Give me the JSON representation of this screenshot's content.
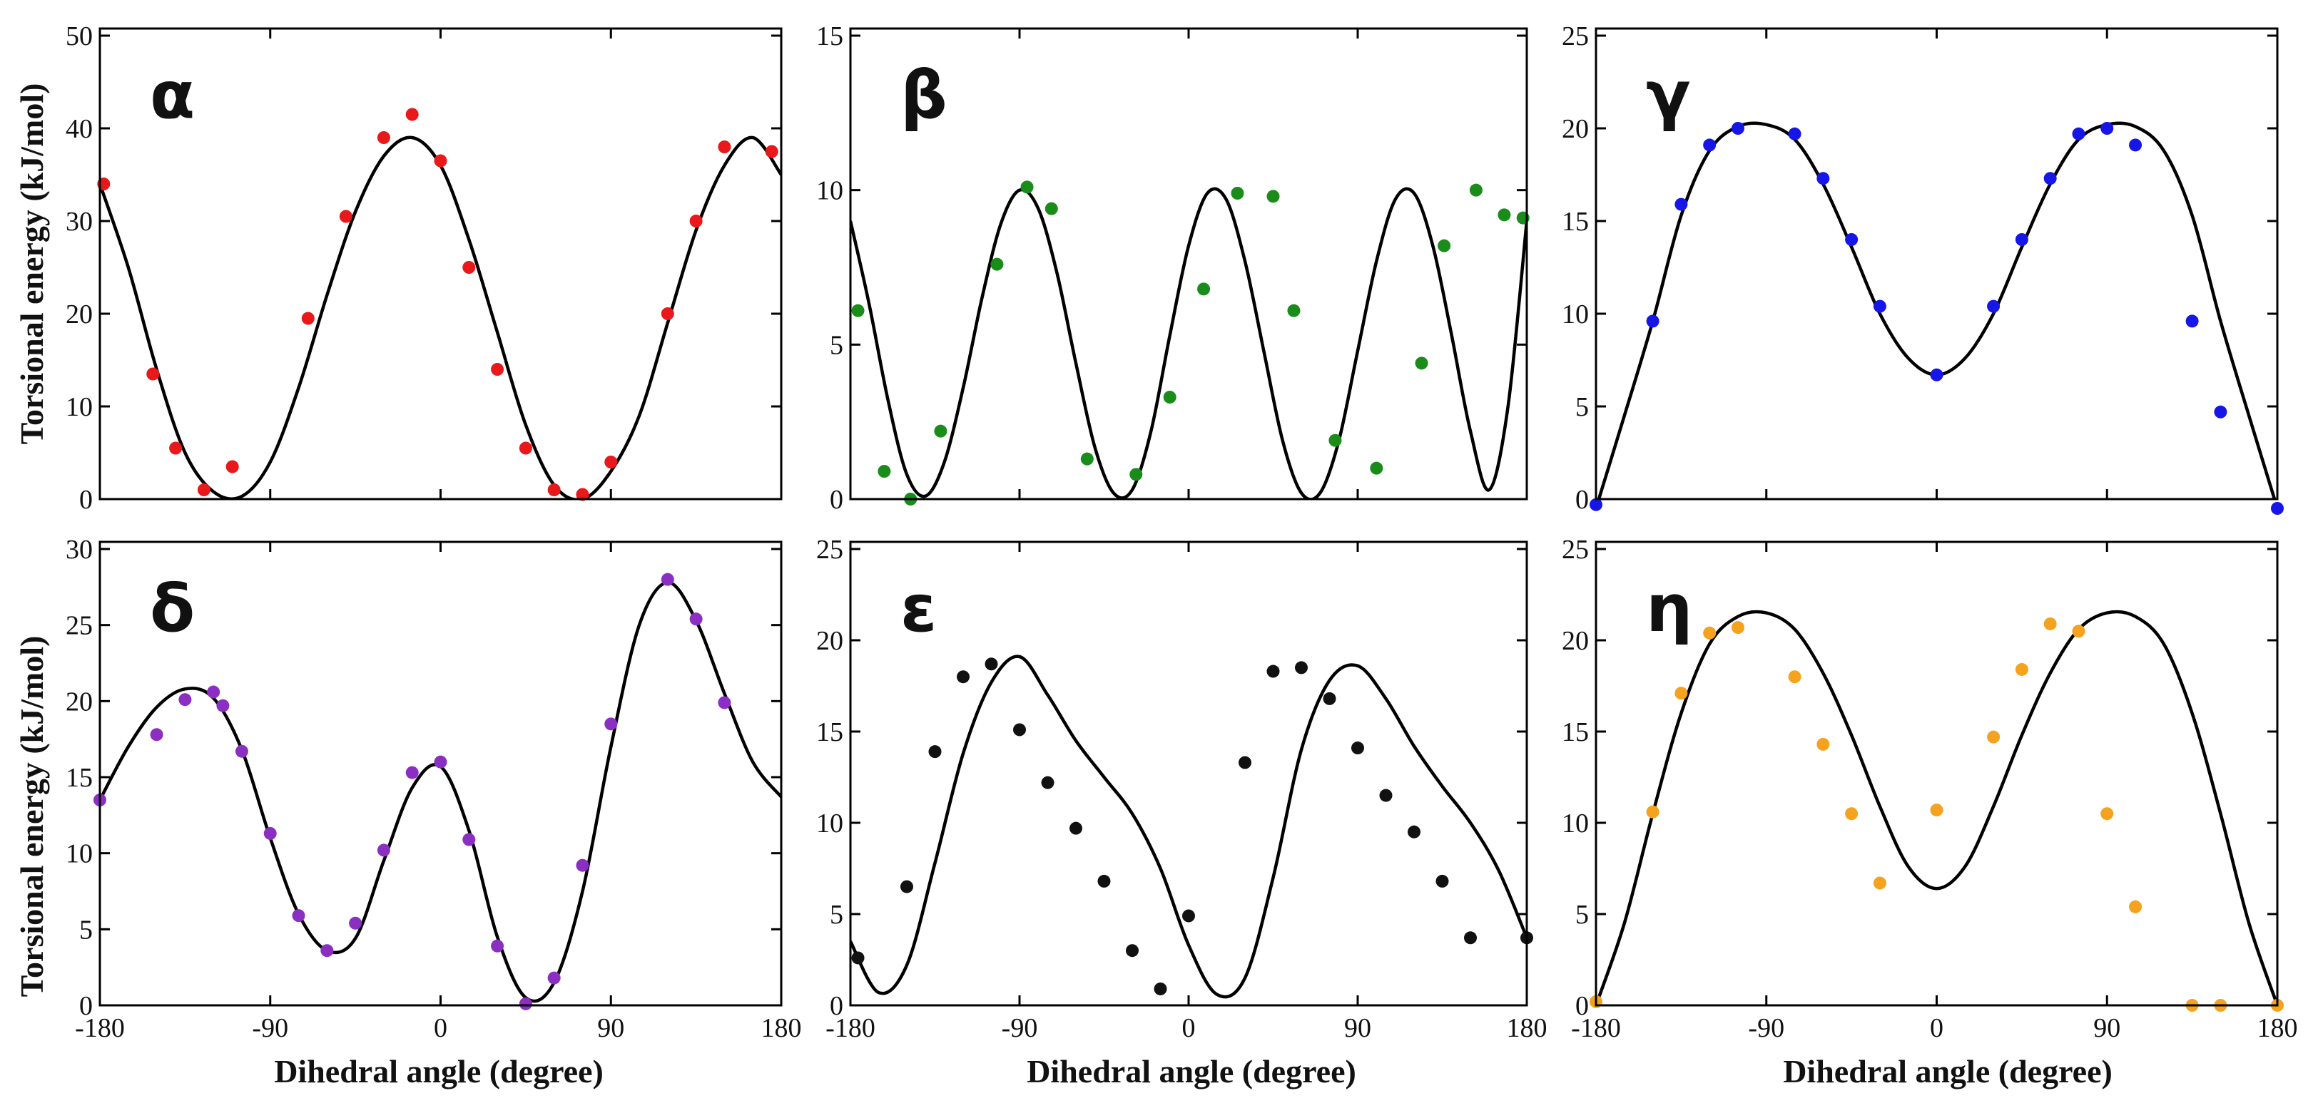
{
  "figure": {
    "ylabel": "Torsional energy (kJ/mol)",
    "xlabel": "Dihedral angle (degree)"
  },
  "chart_data": [
    {
      "type": "scatter",
      "panel_label": "α",
      "point_color": "#e8181b",
      "xlim": [
        -180,
        180
      ],
      "ylim": [
        0,
        50
      ],
      "yticks": [
        0,
        10,
        20,
        30,
        40,
        50
      ],
      "xticks": [],
      "curve": {
        "x": [
          -180,
          -165,
          -150,
          -135,
          -120,
          -105,
          -90,
          -75,
          -60,
          -45,
          -30,
          -15,
          0,
          15,
          30,
          45,
          60,
          75,
          90,
          105,
          120,
          135,
          150,
          165,
          180
        ],
        "y": [
          34,
          25,
          14,
          5,
          0.8,
          0.3,
          4,
          12,
          22,
          31,
          37,
          39,
          36,
          28,
          18,
          8,
          1.5,
          0,
          3,
          9,
          19,
          29,
          36,
          39,
          35
        ]
      },
      "points": {
        "x": [
          -178,
          -152,
          -140,
          -125,
          -110,
          -70,
          -50,
          -30,
          -15,
          0,
          15,
          30,
          45,
          60,
          75,
          90,
          120,
          135,
          150,
          175
        ],
        "y": [
          34,
          13.5,
          5.5,
          1,
          3.5,
          19.5,
          30.5,
          39,
          41.5,
          36.5,
          25,
          14,
          5.5,
          1,
          0.5,
          4,
          20,
          30,
          38,
          37.5
        ]
      }
    },
    {
      "type": "scatter",
      "panel_label": "β",
      "point_color": "#1a8c1a",
      "xlim": [
        -180,
        180
      ],
      "ylim": [
        0,
        15
      ],
      "yticks": [
        0,
        5,
        10,
        15
      ],
      "xticks": [],
      "curve": {
        "x": [
          -180,
          -170,
          -160,
          -150,
          -140,
          -130,
          -120,
          -110,
          -100,
          -90,
          -80,
          -70,
          -60,
          -50,
          -40,
          -30,
          -20,
          -10,
          0,
          10,
          20,
          30,
          40,
          50,
          60,
          70,
          80,
          90,
          100,
          110,
          120,
          130,
          140,
          150,
          160,
          170,
          180
        ],
        "y": [
          9,
          6.3,
          3.2,
          0.8,
          0.1,
          1.2,
          3.6,
          6.5,
          8.9,
          10,
          9.4,
          7.3,
          4.4,
          1.7,
          0.2,
          0.3,
          2.2,
          5.3,
          8.2,
          9.9,
          9.7,
          7.7,
          4.8,
          1.9,
          0.2,
          0.2,
          1.9,
          4.8,
          7.7,
          9.7,
          9.9,
          8.2,
          5.3,
          2.2,
          0.3,
          3,
          9
        ]
      },
      "points": {
        "x": [
          -176,
          -162,
          -148,
          -132,
          -102,
          -86,
          -73,
          -54,
          -28,
          -10,
          8,
          26,
          45,
          56,
          78,
          100,
          124,
          136,
          153,
          168,
          178
        ],
        "y": [
          6.1,
          0.9,
          0,
          2.2,
          7.6,
          10.1,
          9.4,
          1.3,
          0.8,
          3.3,
          6.8,
          9.9,
          9.8,
          6.1,
          1.9,
          1,
          4.4,
          8.2,
          10,
          9.2,
          9.1
        ]
      }
    },
    {
      "type": "scatter",
      "panel_label": "γ",
      "point_color": "#1616e8",
      "xlim": [
        -180,
        180
      ],
      "ylim": [
        0,
        25
      ],
      "yticks": [
        0,
        5,
        10,
        15,
        20,
        25
      ],
      "xticks": [],
      "curve": {
        "x": [
          -180,
          -165,
          -150,
          -135,
          -120,
          -105,
          -90,
          -75,
          -60,
          -45,
          -30,
          -15,
          0,
          15,
          30,
          45,
          60,
          75,
          90,
          105,
          120,
          135,
          150,
          165,
          180
        ],
        "y": [
          -0.5,
          4.5,
          9.6,
          15.3,
          18.8,
          20.1,
          20.2,
          19.4,
          17,
          13.6,
          10,
          7.6,
          6.7,
          7.6,
          10,
          13.6,
          17,
          19.4,
          20.2,
          20.1,
          18.8,
          15.3,
          9.6,
          4.5,
          -0.5
        ]
      },
      "points": {
        "x": [
          -180,
          -150,
          -135,
          -120,
          -105,
          -75,
          -60,
          -45,
          -30,
          0,
          30,
          45,
          60,
          75,
          90,
          105,
          135,
          150,
          180
        ],
        "y": [
          -0.3,
          9.6,
          15.9,
          19.1,
          20,
          19.7,
          17.3,
          14,
          10.4,
          6.7,
          10.4,
          14,
          17.3,
          19.7,
          20,
          19.1,
          9.6,
          4.7,
          -0.5
        ]
      }
    },
    {
      "type": "scatter",
      "panel_label": "δ",
      "point_color": "#8a2fc2",
      "xlim": [
        -180,
        180
      ],
      "ylim": [
        0,
        30
      ],
      "yticks": [
        0,
        5,
        10,
        15,
        20,
        25,
        30
      ],
      "xticks": [
        -180,
        -90,
        0,
        90,
        180
      ],
      "curve": {
        "x": [
          -180,
          -165,
          -150,
          -135,
          -120,
          -105,
          -90,
          -75,
          -60,
          -45,
          -30,
          -15,
          0,
          15,
          30,
          45,
          60,
          75,
          90,
          105,
          120,
          135,
          150,
          165,
          180
        ],
        "y": [
          13.5,
          17,
          19.6,
          20.8,
          20.2,
          16.8,
          11,
          6,
          3.6,
          4.4,
          9.5,
          14.3,
          15.7,
          11.5,
          4.5,
          0.5,
          1.5,
          7.5,
          17,
          25,
          27.8,
          25.3,
          20.5,
          16,
          13.7
        ]
      },
      "points": {
        "x": [
          -180,
          -150,
          -135,
          -120,
          -115,
          -105,
          -90,
          -75,
          -60,
          -45,
          -30,
          -15,
          0,
          15,
          30,
          45,
          60,
          75,
          90,
          120,
          135,
          150
        ],
        "y": [
          13.5,
          17.8,
          20.1,
          20.6,
          19.7,
          16.7,
          11.3,
          5.9,
          3.6,
          5.4,
          10.2,
          15.3,
          16,
          10.9,
          3.9,
          0.1,
          1.8,
          9.2,
          18.5,
          28,
          25.4,
          19.9
        ]
      }
    },
    {
      "type": "scatter",
      "panel_label": "ε",
      "point_color": "#111111",
      "xlim": [
        -180,
        180
      ],
      "ylim": [
        0,
        25
      ],
      "yticks": [
        0,
        5,
        10,
        15,
        20,
        25
      ],
      "xticks": [
        -180,
        -90,
        0,
        90,
        180
      ],
      "curve": {
        "x": [
          -180,
          -165,
          -150,
          -135,
          -120,
          -105,
          -90,
          -75,
          -60,
          -45,
          -30,
          -15,
          0,
          15,
          30,
          45,
          60,
          75,
          90,
          105,
          120,
          135,
          150,
          165,
          180
        ],
        "y": [
          3.5,
          0.7,
          2.2,
          7.8,
          13.8,
          17.7,
          19.1,
          17,
          14.5,
          12.5,
          10.5,
          7.5,
          3.3,
          0.6,
          1.5,
          7,
          14,
          17.8,
          18.6,
          16.8,
          14.2,
          12,
          10,
          7.4,
          3.7
        ]
      },
      "points": {
        "x": [
          -176,
          -150,
          -135,
          -120,
          -105,
          -90,
          -75,
          -60,
          -45,
          -30,
          -15,
          0,
          30,
          45,
          60,
          75,
          90,
          105,
          120,
          135,
          150,
          180
        ],
        "y": [
          2.6,
          6.5,
          13.9,
          18,
          18.7,
          15.1,
          12.2,
          9.7,
          6.8,
          3,
          0.9,
          4.9,
          13.3,
          18.3,
          18.5,
          16.8,
          14.1,
          11.5,
          9.5,
          6.8,
          3.7,
          3.7
        ]
      }
    },
    {
      "type": "scatter",
      "panel_label": "η",
      "point_color": "#f5a21e",
      "xlim": [
        -180,
        180
      ],
      "ylim": [
        0,
        25
      ],
      "yticks": [
        0,
        5,
        10,
        15,
        20,
        25
      ],
      "xticks": [
        -180,
        -90,
        0,
        90,
        180
      ],
      "curve": {
        "x": [
          -180,
          -165,
          -150,
          -135,
          -120,
          -105,
          -90,
          -75,
          -60,
          -45,
          -30,
          -15,
          0,
          15,
          30,
          45,
          60,
          75,
          90,
          105,
          120,
          135,
          150,
          165,
          180
        ],
        "y": [
          0,
          4.5,
          10.5,
          16,
          19.8,
          21.3,
          21.5,
          20.6,
          18.2,
          14.8,
          10.9,
          7.6,
          6.4,
          7.6,
          10.9,
          14.8,
          18.2,
          20.6,
          21.5,
          21.3,
          19.8,
          16,
          10.5,
          4.5,
          0
        ]
      },
      "points": {
        "x": [
          -180,
          -150,
          -135,
          -120,
          -105,
          -75,
          -60,
          -45,
          -30,
          0,
          30,
          45,
          60,
          75,
          90,
          105,
          135,
          150,
          180
        ],
        "y": [
          0.2,
          10.6,
          17.1,
          20.4,
          20.7,
          18,
          14.3,
          10.5,
          6.7,
          10.7,
          14.7,
          18.4,
          20.9,
          20.5,
          10.5,
          5.4,
          0,
          0,
          0
        ]
      }
    }
  ]
}
